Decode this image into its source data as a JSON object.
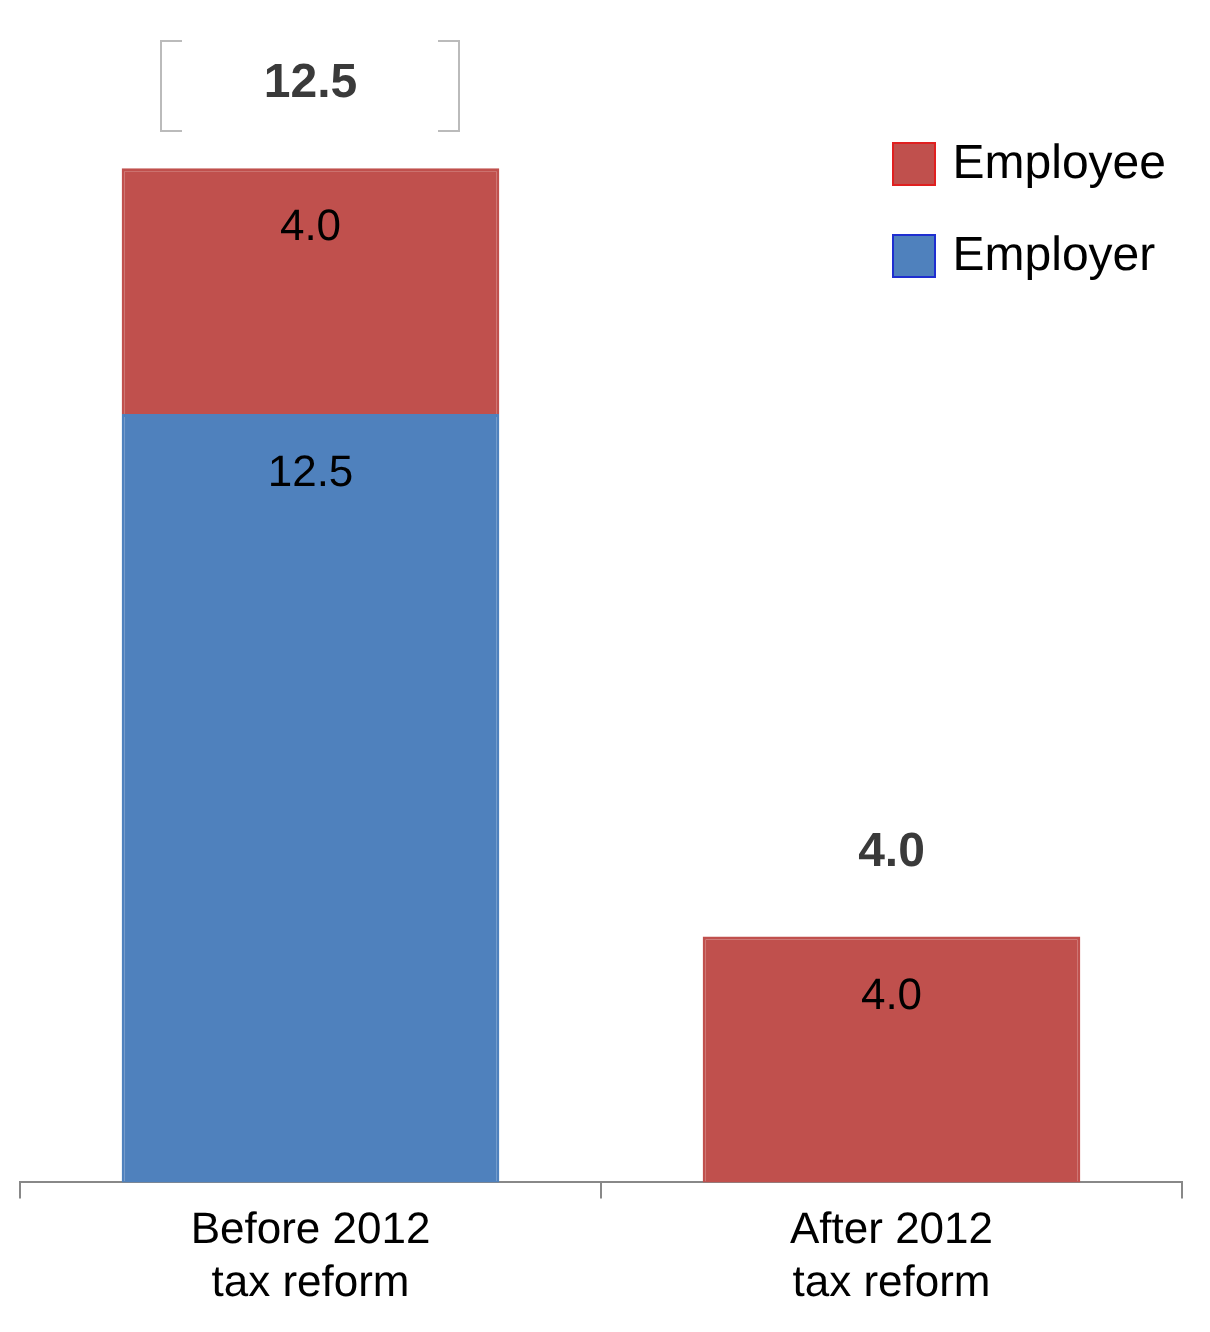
{
  "chart_data": {
    "type": "bar",
    "stacked": true,
    "categories": [
      "Before 2012 tax reform",
      "After 2012 tax reform"
    ],
    "series": [
      {
        "name": "Employer",
        "color": "#4f81bd",
        "values": [
          12.5,
          null
        ],
        "value_labels": [
          "12.5",
          null
        ]
      },
      {
        "name": "Employee",
        "color": "#c0504d",
        "values": [
          4.0,
          4.0
        ],
        "value_labels": [
          "4.0",
          "4.0"
        ]
      }
    ],
    "annotations": [
      {
        "text": "12.5",
        "x": "Before 2012 tax reform",
        "y": 16.5
      },
      {
        "text": "4.0",
        "x": "After 2012 tax reform",
        "y": 4.0
      }
    ],
    "legend": "top right",
    "grid": false
  }
}
